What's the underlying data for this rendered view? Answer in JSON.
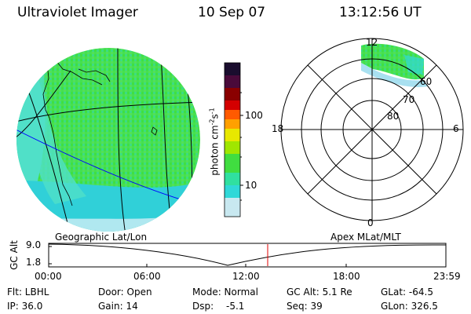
{
  "header": {
    "instrument": "Ultraviolet Imager",
    "date": "10 Sep 07",
    "time": "13:12:56 UT"
  },
  "colorbar": {
    "unit_label": "photon cm",
    "unit_exp1": "-2",
    "unit_s": "s",
    "unit_exp2": "-1",
    "ticks": [
      "100",
      "10"
    ],
    "colors": [
      "#1a0d2e",
      "#4a0a3a",
      "#8a0000",
      "#d40000",
      "#ff5a00",
      "#ffa000",
      "#e8e800",
      "#a0e600",
      "#40dd40",
      "#30e0a0",
      "#30d8d8",
      "#c8e8f0"
    ]
  },
  "left_map": {
    "label": "Geographic Lat/Lon",
    "fill_colors": [
      "#40e040",
      "#50e0c8",
      "#30d0d8",
      "#b0e8f0"
    ]
  },
  "polar_plot": {
    "label": "Apex MLat/MLT",
    "mlt_labels": [
      "12",
      "18",
      "6",
      "0"
    ],
    "lat_labels": [
      "60",
      "70",
      "80"
    ]
  },
  "timeline": {
    "axis_label": "GC Alt",
    "y_tick": "9.0",
    "y_tick_low": "1.8",
    "x_ticks": [
      "00:00",
      "06:00",
      "12:00",
      "18:00",
      "23:59"
    ],
    "marker_color": "#e00000"
  },
  "info": {
    "flt": "Flt: LBHL",
    "ip": "IP: 36.0",
    "door": "Door: Open",
    "gain": "Gain: 14",
    "mode": "Mode: Normal",
    "dsp": "Dsp:",
    "dsp_val": "-5.1",
    "gcalt": "GC Alt: 5.1 Re",
    "seq": "Seq: 39",
    "glat": "GLat: -64.5",
    "glon": "GLon: 326.5"
  }
}
